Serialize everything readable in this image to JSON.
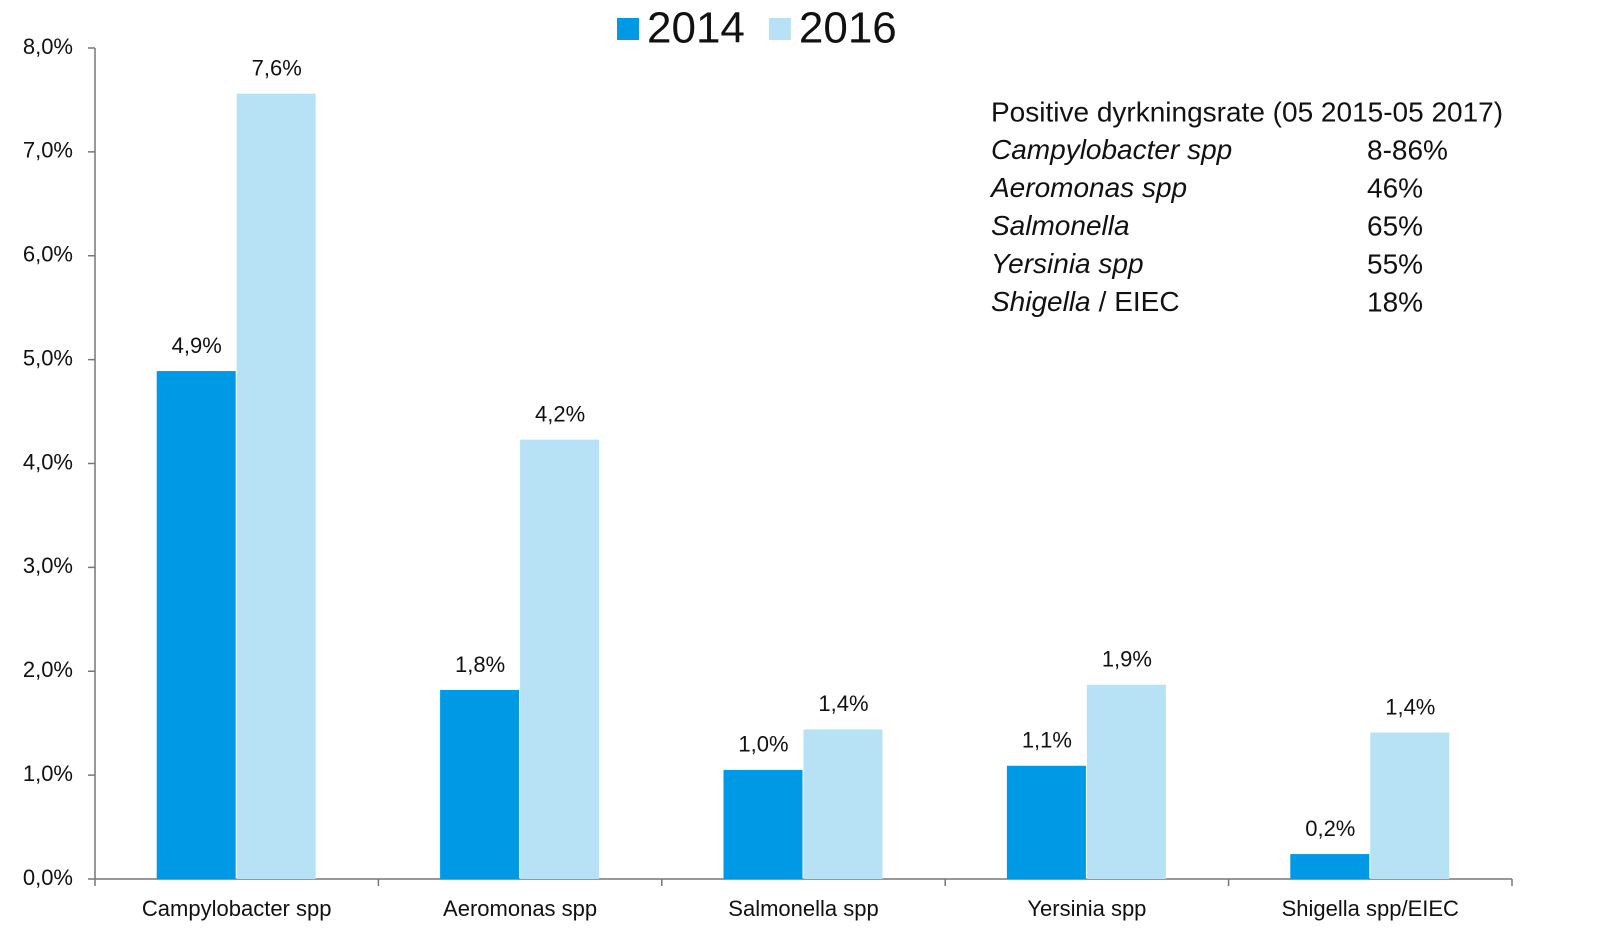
{
  "chart_data": {
    "type": "bar",
    "categories": [
      "Campylobacter spp",
      "Aeromonas spp",
      "Salmonella spp",
      "Yersinia spp",
      "Shigella spp/EIEC"
    ],
    "series": [
      {
        "name": "2014",
        "color": "#0099e6",
        "values": [
          4.89,
          1.82,
          1.05,
          1.09,
          0.24
        ],
        "value_labels": [
          "4,9%",
          "1,8%",
          "1,0%",
          "1,1%",
          "0,2%"
        ]
      },
      {
        "name": "2016",
        "color": "#b7e2f6",
        "values": [
          7.56,
          4.23,
          1.44,
          1.87,
          1.41
        ],
        "value_labels": [
          "7,6%",
          "4,2%",
          "1,4%",
          "1,9%",
          "1,4%"
        ]
      }
    ],
    "ylim": [
      0,
      8
    ],
    "yticks": [
      {
        "value": 0,
        "label": "0,0%"
      },
      {
        "value": 1,
        "label": "1,0%"
      },
      {
        "value": 2,
        "label": "2,0%"
      },
      {
        "value": 3,
        "label": "3,0%"
      },
      {
        "value": 4,
        "label": "4,0%"
      },
      {
        "value": 5,
        "label": "5,0%"
      },
      {
        "value": 6,
        "label": "6,0%"
      },
      {
        "value": 7,
        "label": "7,0%"
      },
      {
        "value": 8,
        "label": "8,0%"
      }
    ],
    "legend": "top",
    "annotation": {
      "title": "Positive dyrkningsrate (05 2015-05 2017)",
      "rows": [
        {
          "name": "Campylobacter spp",
          "value": "8-86%"
        },
        {
          "name": "Aeromonas spp",
          "value": "46%"
        },
        {
          "name": "Salmonella",
          "value": "65%"
        },
        {
          "name": "Yersinia spp",
          "value": "55%"
        },
        {
          "name": "Shigella",
          "suffix": "/ EIEC",
          "value": "18%"
        }
      ]
    }
  }
}
